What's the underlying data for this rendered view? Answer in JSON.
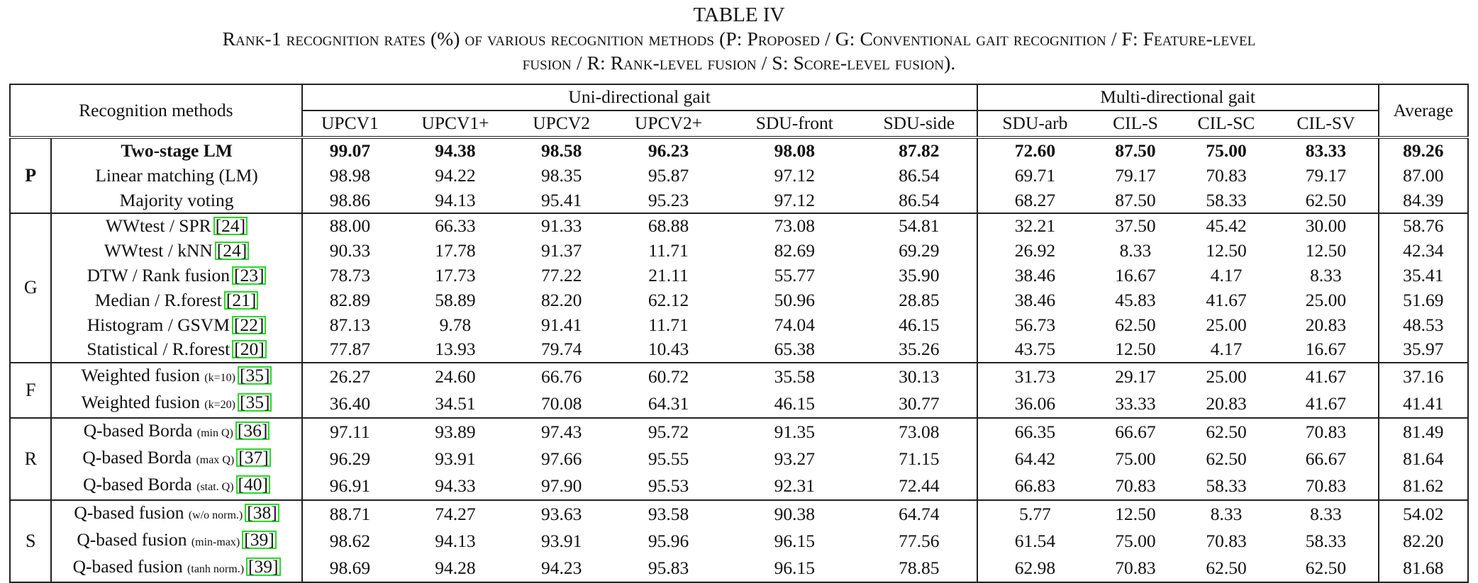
{
  "caption": {
    "table_number": "TABLE IV",
    "line1": "Rank-1 recognition rates (%) of various recognition methods (P: Proposed / G: Conventional gait recognition / F: Feature-level",
    "line2": "fusion / R: Rank-level fusion / S: Score-level fusion)."
  },
  "header": {
    "methods_label": "Recognition methods",
    "uni_label": "Uni-directional gait",
    "multi_label": "Multi-directional gait",
    "average_label": "Average",
    "columns": [
      "UPCV1",
      "UPCV1+",
      "UPCV2",
      "UPCV2+",
      "SDU-front",
      "SDU-side",
      "SDU-arb",
      "CIL-S",
      "CIL-SC",
      "CIL-SV"
    ]
  },
  "groups": [
    {
      "label": "P",
      "rows": [
        {
          "method": "Two-stage LM",
          "suffix": "",
          "ref": "",
          "bold": true,
          "values": [
            "99.07",
            "94.38",
            "98.58",
            "96.23",
            "98.08",
            "87.82",
            "72.60",
            "87.50",
            "75.00",
            "83.33",
            "89.26"
          ]
        },
        {
          "method": "Linear matching (LM)",
          "suffix": "",
          "ref": "",
          "bold": false,
          "values": [
            "98.98",
            "94.22",
            "98.35",
            "95.87",
            "97.12",
            "86.54",
            "69.71",
            "79.17",
            "70.83",
            "79.17",
            "87.00"
          ]
        },
        {
          "method": "Majority voting",
          "suffix": "",
          "ref": "",
          "bold": false,
          "values": [
            "98.86",
            "94.13",
            "95.41",
            "95.23",
            "97.12",
            "86.54",
            "68.27",
            "87.50",
            "58.33",
            "62.50",
            "84.39"
          ]
        }
      ]
    },
    {
      "label": "G",
      "rows": [
        {
          "method": "WWtest / SPR",
          "suffix": "",
          "ref": "24",
          "bold": false,
          "values": [
            "88.00",
            "66.33",
            "91.33",
            "68.88",
            "73.08",
            "54.81",
            "32.21",
            "37.50",
            "45.42",
            "30.00",
            "58.76"
          ]
        },
        {
          "method": "WWtest / kNN",
          "suffix": "",
          "ref": "24",
          "bold": false,
          "values": [
            "90.33",
            "17.78",
            "91.37",
            "11.71",
            "82.69",
            "69.29",
            "26.92",
            "8.33",
            "12.50",
            "12.50",
            "42.34"
          ]
        },
        {
          "method": "DTW / Rank fusion",
          "suffix": "",
          "ref": "23",
          "bold": false,
          "values": [
            "78.73",
            "17.73",
            "77.22",
            "21.11",
            "55.77",
            "35.90",
            "38.46",
            "16.67",
            "4.17",
            "8.33",
            "35.41"
          ]
        },
        {
          "method": "Median / R.forest",
          "suffix": "",
          "ref": "21",
          "bold": false,
          "values": [
            "82.89",
            "58.89",
            "82.20",
            "62.12",
            "50.96",
            "28.85",
            "38.46",
            "45.83",
            "41.67",
            "25.00",
            "51.69"
          ]
        },
        {
          "method": "Histogram / GSVM",
          "suffix": "",
          "ref": "22",
          "bold": false,
          "values": [
            "87.13",
            "9.78",
            "91.41",
            "11.71",
            "74.04",
            "46.15",
            "56.73",
            "62.50",
            "25.00",
            "20.83",
            "48.53"
          ]
        },
        {
          "method": "Statistical / R.forest",
          "suffix": "",
          "ref": "20",
          "bold": false,
          "values": [
            "77.87",
            "13.93",
            "79.74",
            "10.43",
            "65.38",
            "35.26",
            "43.75",
            "12.50",
            "4.17",
            "16.67",
            "35.97"
          ]
        }
      ]
    },
    {
      "label": "F",
      "rows": [
        {
          "method": "Weighted fusion",
          "suffix": "(k=10)",
          "ref": "35",
          "bold": false,
          "values": [
            "26.27",
            "24.60",
            "66.76",
            "60.72",
            "35.58",
            "30.13",
            "31.73",
            "29.17",
            "25.00",
            "41.67",
            "37.16"
          ]
        },
        {
          "method": "Weighted fusion",
          "suffix": "(k=20)",
          "ref": "35",
          "bold": false,
          "values": [
            "36.40",
            "34.51",
            "70.08",
            "64.31",
            "46.15",
            "30.77",
            "36.06",
            "33.33",
            "20.83",
            "41.67",
            "41.41"
          ]
        }
      ]
    },
    {
      "label": "R",
      "rows": [
        {
          "method": "Q-based Borda",
          "suffix": "(min Q)",
          "ref": "36",
          "bold": false,
          "values": [
            "97.11",
            "93.89",
            "97.43",
            "95.72",
            "91.35",
            "73.08",
            "66.35",
            "66.67",
            "62.50",
            "70.83",
            "81.49"
          ]
        },
        {
          "method": "Q-based Borda",
          "suffix": "(max Q)",
          "ref": "37",
          "bold": false,
          "values": [
            "96.29",
            "93.91",
            "97.66",
            "95.55",
            "93.27",
            "71.15",
            "64.42",
            "75.00",
            "62.50",
            "66.67",
            "81.64"
          ]
        },
        {
          "method": "Q-based Borda",
          "suffix": "(stat. Q)",
          "ref": "40",
          "bold": false,
          "values": [
            "96.91",
            "94.33",
            "97.90",
            "95.53",
            "92.31",
            "72.44",
            "66.83",
            "70.83",
            "58.33",
            "70.83",
            "81.62"
          ]
        }
      ]
    },
    {
      "label": "S",
      "rows": [
        {
          "method": "Q-based fusion",
          "suffix": "(w/o norm.)",
          "ref": "38",
          "bold": false,
          "values": [
            "88.71",
            "74.27",
            "93.63",
            "93.58",
            "90.38",
            "64.74",
            "5.77",
            "12.50",
            "8.33",
            "8.33",
            "54.02"
          ]
        },
        {
          "method": "Q-based fusion",
          "suffix": "(min-max)",
          "ref": "39",
          "bold": false,
          "values": [
            "98.62",
            "94.13",
            "93.91",
            "95.96",
            "96.15",
            "77.56",
            "61.54",
            "75.00",
            "70.83",
            "58.33",
            "82.20"
          ]
        },
        {
          "method": "Q-based fusion",
          "suffix": "(tanh norm.)",
          "ref": "39",
          "bold": false,
          "values": [
            "98.69",
            "94.28",
            "94.23",
            "95.83",
            "96.15",
            "78.85",
            "62.98",
            "70.83",
            "62.50",
            "62.50",
            "81.68"
          ]
        }
      ]
    }
  ]
}
